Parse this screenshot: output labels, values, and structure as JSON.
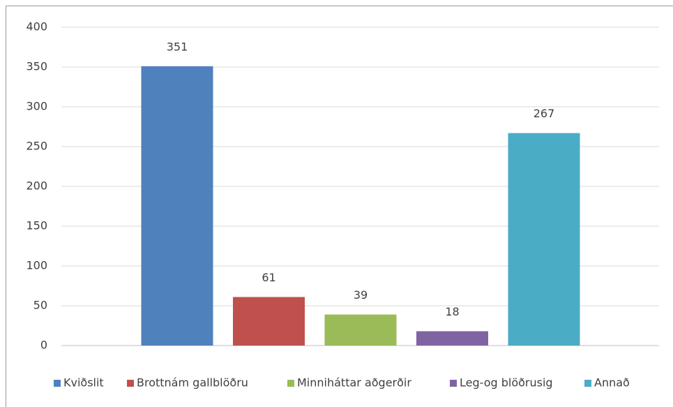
{
  "chart_data": {
    "type": "bar",
    "categories": [
      null
    ],
    "series": [
      {
        "name": "Kviðslit",
        "color": "#4f81bd",
        "values": [
          351
        ]
      },
      {
        "name": "Brottnám gallblöðru",
        "color": "#c0504d",
        "values": [
          61
        ]
      },
      {
        "name": "Minniháttar aðgerðir",
        "color": "#9bbb59",
        "values": [
          39
        ]
      },
      {
        "name": "Leg-og blöðrusig",
        "color": "#8064a2",
        "values": [
          18
        ]
      },
      {
        "name": "Annað",
        "color": "#4bacc6",
        "values": [
          267
        ]
      }
    ],
    "ylim": [
      0,
      400
    ],
    "yticks": [
      0,
      50,
      100,
      150,
      200,
      250,
      300,
      350,
      400
    ],
    "grid": true,
    "legend": "bottom"
  }
}
